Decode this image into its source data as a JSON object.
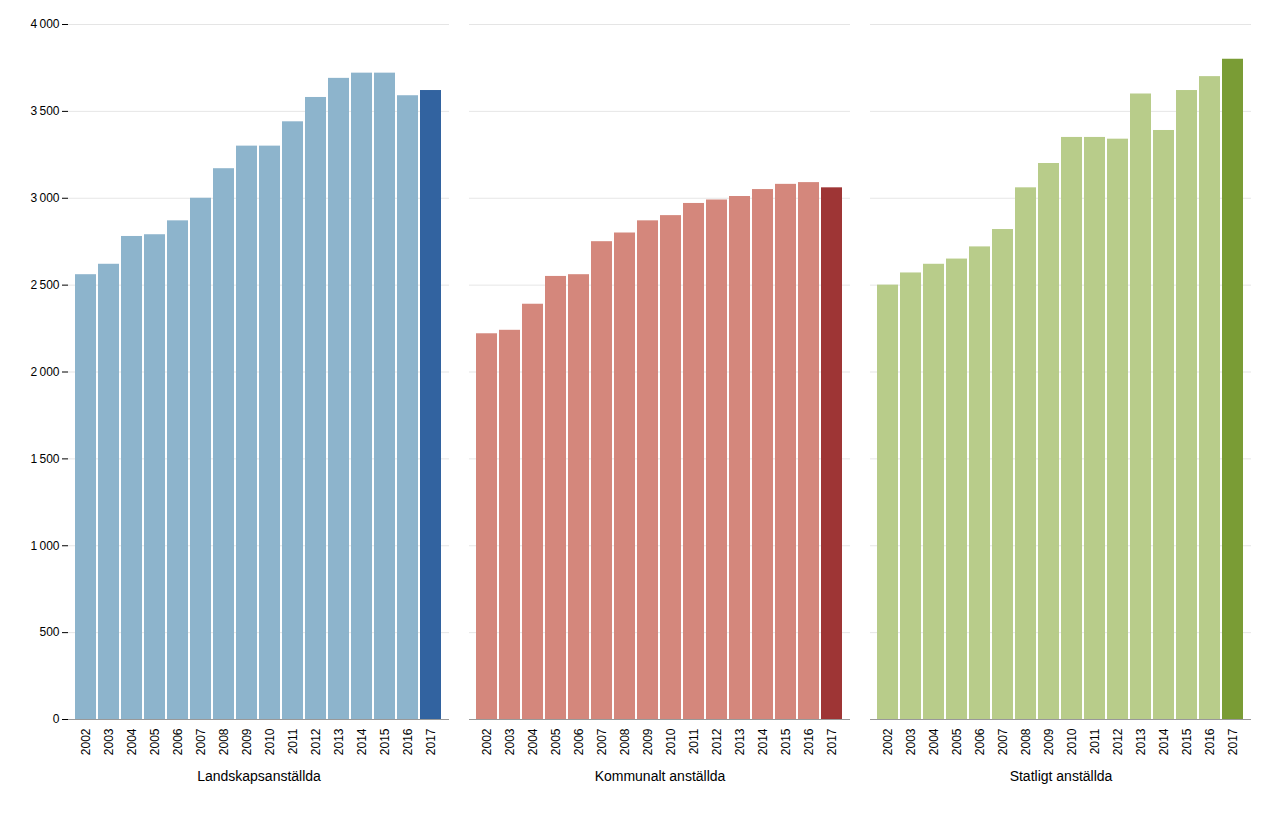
{
  "chart_data": {
    "type": "bar",
    "categories": [
      "2002",
      "2003",
      "2004",
      "2005",
      "2006",
      "2007",
      "2008",
      "2009",
      "2010",
      "2011",
      "2012",
      "2013",
      "2014",
      "2015",
      "2016",
      "2017"
    ],
    "series": [
      {
        "name": "Landskapsanställda",
        "colors": [
          "#8db4cc",
          "#8db4cc",
          "#8db4cc",
          "#8db4cc",
          "#8db4cc",
          "#8db4cc",
          "#8db4cc",
          "#8db4cc",
          "#8db4cc",
          "#8db4cc",
          "#8db4cc",
          "#8db4cc",
          "#8db4cc",
          "#8db4cc",
          "#8db4cc",
          "#3263a0"
        ],
        "values": [
          2560,
          2620,
          2780,
          2790,
          2870,
          3000,
          3170,
          3300,
          3300,
          3440,
          3580,
          3690,
          3720,
          3720,
          3590,
          3620
        ]
      },
      {
        "name": "Kommunalt anställda",
        "colors": [
          "#d4877c",
          "#d4877c",
          "#d4877c",
          "#d4877c",
          "#d4877c",
          "#d4877c",
          "#d4877c",
          "#d4877c",
          "#d4877c",
          "#d4877c",
          "#d4877c",
          "#d4877c",
          "#d4877c",
          "#d4877c",
          "#d4877c",
          "#9e3535"
        ],
        "values": [
          2220,
          2240,
          2390,
          2550,
          2560,
          2750,
          2800,
          2870,
          2900,
          2970,
          2990,
          3010,
          3050,
          3080,
          3090,
          3060
        ]
      },
      {
        "name": "Statligt anställda",
        "colors": [
          "#b8cc8a",
          "#b8cc8a",
          "#b8cc8a",
          "#b8cc8a",
          "#b8cc8a",
          "#b8cc8a",
          "#b8cc8a",
          "#b8cc8a",
          "#b8cc8a",
          "#b8cc8a",
          "#b8cc8a",
          "#b8cc8a",
          "#b8cc8a",
          "#b8cc8a",
          "#b8cc8a",
          "#7a9c35"
        ],
        "values": [
          2500,
          2570,
          2620,
          2650,
          2720,
          2820,
          3060,
          3200,
          3350,
          3350,
          3340,
          3600,
          3390,
          3620,
          3700,
          3800
        ]
      }
    ],
    "ylim": [
      0,
      4000
    ],
    "yticks": [
      0,
      500,
      {
        "value": 1000,
        "label": "1 000"
      },
      {
        "value": 1500,
        "label": "1 500"
      },
      {
        "value": 2000,
        "label": "2 000"
      },
      {
        "value": 2500,
        "label": "2 500"
      },
      {
        "value": 3000,
        "label": "3 000"
      },
      {
        "value": 3500,
        "label": "3 500"
      },
      {
        "value": 4000,
        "label": "4 000"
      }
    ],
    "grid": true
  }
}
